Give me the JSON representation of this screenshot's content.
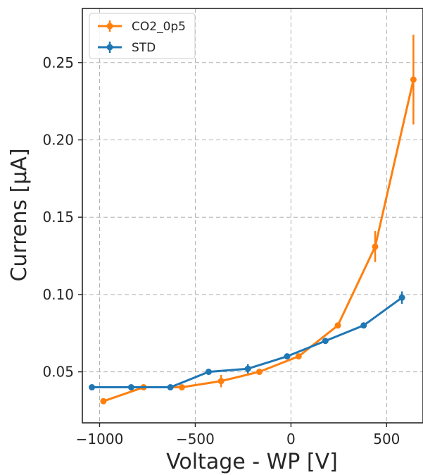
{
  "chart_data": {
    "type": "line",
    "title": "",
    "xlabel": "Voltage - WP [V]",
    "ylabel": "Currens [μA]",
    "xlim": [
      -1090,
      690
    ],
    "ylim": [
      0.017,
      0.285
    ],
    "xticks": [
      -1000,
      -500,
      0,
      500
    ],
    "xtick_labels": [
      "−1000",
      "−500",
      "0",
      "500"
    ],
    "yticks": [
      0.05,
      0.1,
      0.15,
      0.2,
      0.25
    ],
    "ytick_labels": [
      "0.05",
      "0.10",
      "0.15",
      "0.20",
      "0.25"
    ],
    "grid": true,
    "legend_position": "top-left",
    "series": [
      {
        "name": "CO2_0p5",
        "color": "#ff7f0e",
        "x": [
          -980,
          -770,
          -570,
          -365,
          -165,
          40,
          245,
          440,
          640
        ],
        "y": [
          0.031,
          0.04,
          0.04,
          0.044,
          0.05,
          0.06,
          0.08,
          0.131,
          0.239
        ],
        "yerr": [
          0.001,
          0.001,
          0.001,
          0.004,
          0.001,
          0.001,
          0.001,
          0.01,
          0.029
        ]
      },
      {
        "name": "STD",
        "color": "#1f77b4",
        "x": [
          -1040,
          -835,
          -630,
          -430,
          -225,
          -20,
          180,
          380,
          580
        ],
        "y": [
          0.04,
          0.04,
          0.04,
          0.05,
          0.052,
          0.06,
          0.07,
          0.08,
          0.098
        ],
        "yerr": [
          0.001,
          0.001,
          0.001,
          0.001,
          0.003,
          0.001,
          0.001,
          0.001,
          0.004
        ]
      }
    ]
  }
}
